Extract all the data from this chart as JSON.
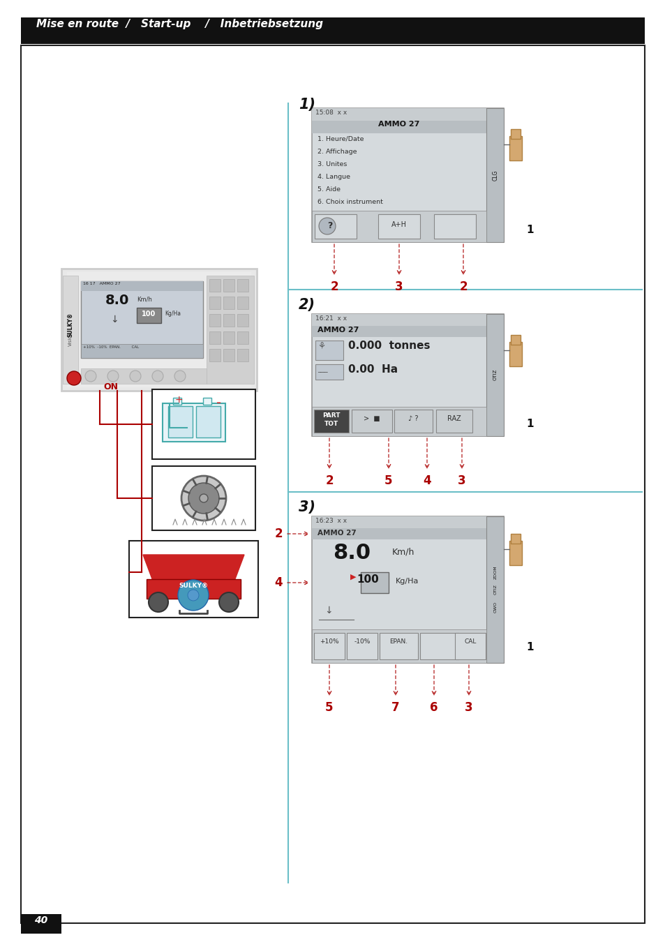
{
  "page_num": "40",
  "header_text": "Mise en route  /   Start-up    /   Inbetriebsetzung",
  "bg_color": "#ffffff",
  "header_bg": "#000000",
  "header_text_color": "#ffffff",
  "teal_line_color": "#6bbfc8",
  "red_color": "#aa0000",
  "section1_label": "1)",
  "section2_label": "2)",
  "section3_label": "3)",
  "screen1_time": "15:08  x x",
  "screen1_title": "AMMO 27",
  "screen1_menu": [
    "1. Heure/Date",
    "2. Affichage",
    "3. Unites",
    "4. Langue",
    "5. Aide",
    "6. Choix instrument"
  ],
  "screen1_right_btn": "CLG",
  "screen1_btns": [
    "?",
    "A+H",
    ""
  ],
  "screen1_arrows": [
    "2",
    "3",
    "2"
  ],
  "screen2_time": "16:21  x x",
  "screen2_title": "AMMO 27",
  "screen2_val1": "0.000 tonnes",
  "screen2_val2": "0.00 Ha",
  "screen2_right_btn": "OTIZ",
  "screen2_btns": [
    "PART TOT",
    "",
    "? ",
    "RAZ"
  ],
  "screen2_arrows": [
    "2",
    "5",
    "4",
    "3"
  ],
  "screen3_time": "16:23  x x",
  "screen3_title": "AMMO 27",
  "screen3_speed": "8.0",
  "screen3_speed_unit": "Km/h",
  "screen3_rate": "100",
  "screen3_rate_unit": "Kg/Ha",
  "screen3_right_btn": "ZOOM OTIZ OWO",
  "screen3_btns": [
    "+10%",
    "-10%",
    "EPAN.",
    "",
    "CAL"
  ],
  "screen3_arrows_left": [
    "2",
    "4"
  ],
  "screen3_arrows_bottom": [
    "5",
    "7",
    "6",
    "3"
  ]
}
